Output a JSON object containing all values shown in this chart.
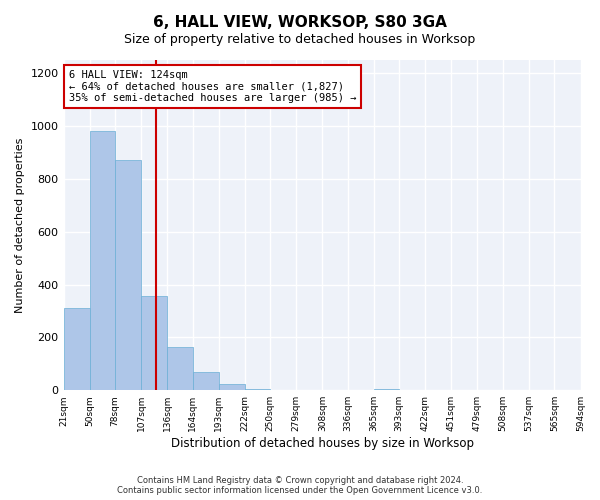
{
  "title": "6, HALL VIEW, WORKSOP, S80 3GA",
  "subtitle": "Size of property relative to detached houses in Worksop",
  "xlabel": "Distribution of detached houses by size in Worksop",
  "ylabel": "Number of detached properties",
  "bar_color": "#aec6e8",
  "bar_edge_color": "#6aafd6",
  "background_color": "#eef2f9",
  "grid_color": "#ffffff",
  "tick_labels": [
    "21sqm",
    "50sqm",
    "78sqm",
    "107sqm",
    "136sqm",
    "164sqm",
    "193sqm",
    "222sqm",
    "250sqm",
    "279sqm",
    "308sqm",
    "336sqm",
    "365sqm",
    "393sqm",
    "422sqm",
    "451sqm",
    "479sqm",
    "508sqm",
    "537sqm",
    "565sqm",
    "594sqm"
  ],
  "values": [
    310,
    980,
    870,
    355,
    165,
    68,
    25,
    5,
    0,
    0,
    0,
    0,
    5,
    0,
    0,
    0,
    0,
    0,
    0,
    0
  ],
  "bin_edges": [
    21,
    50,
    78,
    107,
    136,
    164,
    193,
    222,
    250,
    279,
    308,
    336,
    365,
    393,
    422,
    451,
    479,
    508,
    537,
    565,
    594
  ],
  "property_size": 124,
  "property_label": "6 HALL VIEW: 124sqm",
  "annotation_line1": "← 64% of detached houses are smaller (1,827)",
  "annotation_line2": "35% of semi-detached houses are larger (985) →",
  "red_line_color": "#cc0000",
  "annotation_box_color": "#cc0000",
  "ylim": [
    0,
    1250
  ],
  "yticks": [
    0,
    200,
    400,
    600,
    800,
    1000,
    1200
  ],
  "footer_line1": "Contains HM Land Registry data © Crown copyright and database right 2024.",
  "footer_line2": "Contains public sector information licensed under the Open Government Licence v3.0."
}
